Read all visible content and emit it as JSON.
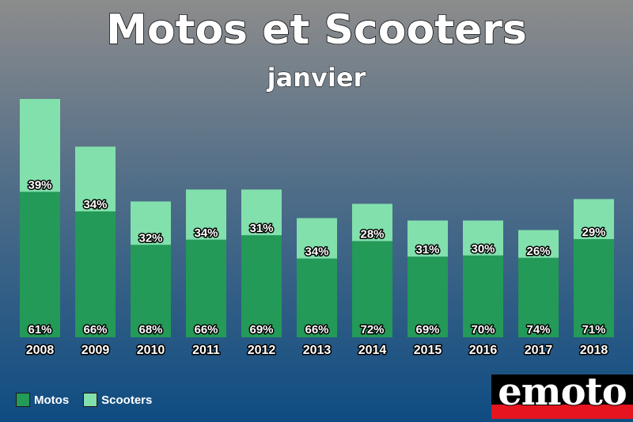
{
  "header": {
    "title": "Motos et Scooters",
    "subtitle": "janvier"
  },
  "legend": {
    "motos": "Motos",
    "scooters": "Scooters"
  },
  "logo": {
    "text": "emoto"
  },
  "colors": {
    "motos": "#239a57",
    "scooters": "#82e0ac"
  },
  "chart_data": {
    "type": "bar",
    "stacked": true,
    "title": "Motos et Scooters",
    "subtitle": "janvier",
    "categories": [
      "2008",
      "2009",
      "2010",
      "2011",
      "2012",
      "2013",
      "2014",
      "2015",
      "2016",
      "2017",
      "2018"
    ],
    "series": [
      {
        "name": "Motos",
        "values": [
          61,
          66,
          68,
          66,
          69,
          66,
          72,
          69,
          70,
          74,
          71
        ]
      },
      {
        "name": "Scooters",
        "values": [
          39,
          34,
          32,
          34,
          31,
          34,
          28,
          31,
          30,
          26,
          29
        ]
      }
    ],
    "relative_totals": [
      100,
      80,
      57,
      62,
      62,
      50,
      56,
      49,
      49,
      45,
      58
    ],
    "legend_position": "bottom-left",
    "grid": false
  }
}
